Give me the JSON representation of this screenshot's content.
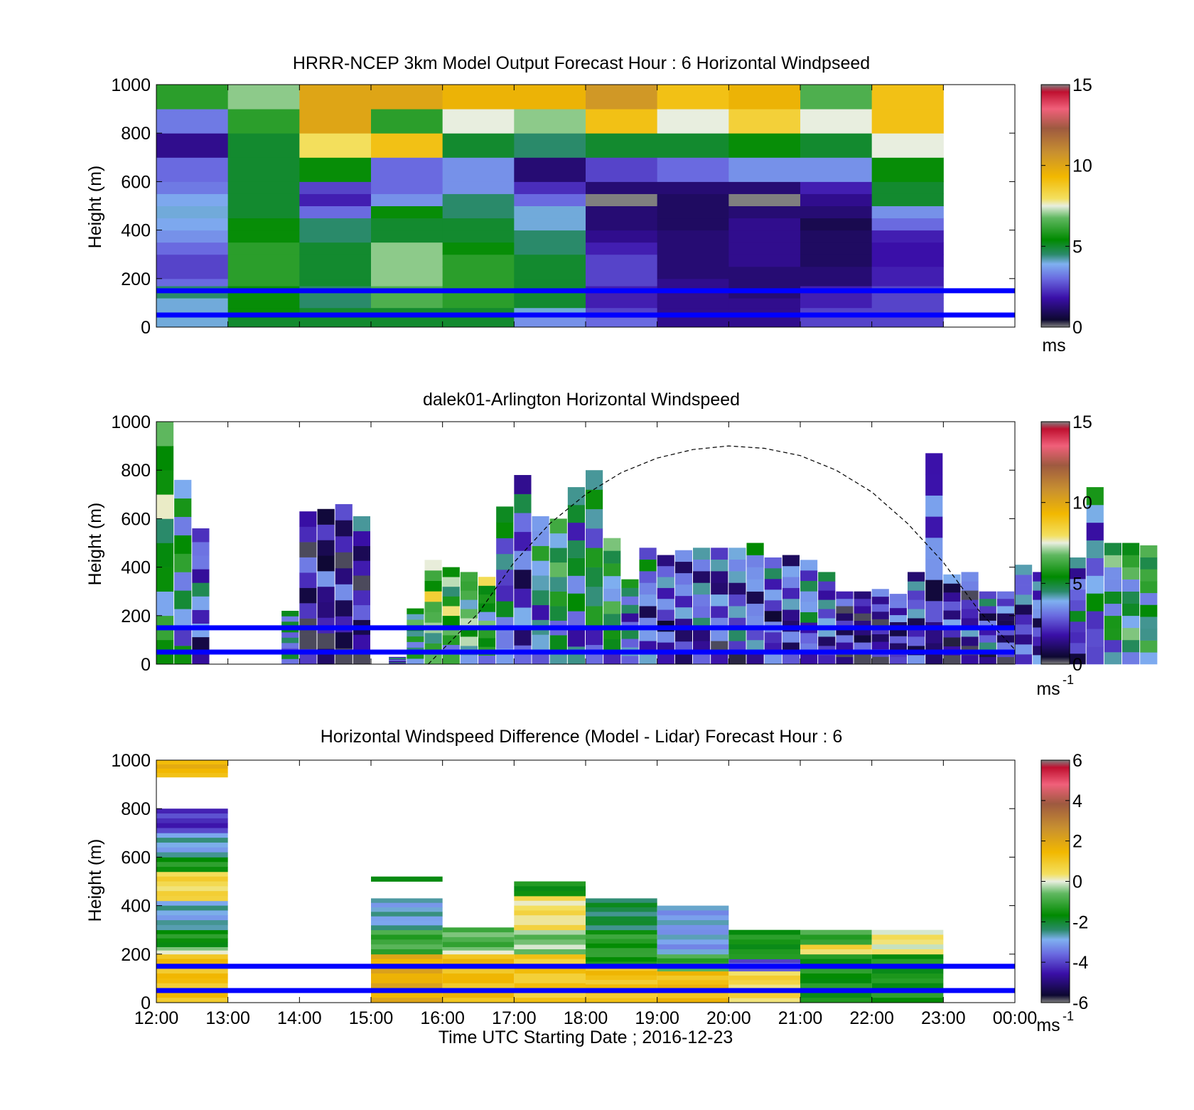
{
  "figure": {
    "xlabel": "Time UTC  Starting Date ; 2016-12-23",
    "x_tick_labels": [
      "12:00",
      "13:00",
      "14:00",
      "15:00",
      "16:00",
      "17:00",
      "18:00",
      "19:00",
      "20:00",
      "21:00",
      "22:00",
      "23:00",
      "00:00"
    ],
    "colors": {
      "boundary_lines": "#0000ff",
      "solar_curve": "#000000"
    }
  },
  "chart_data": [
    {
      "type": "heatmap",
      "title": "HRRR-NCEP 3km Model Output   Forecast Hour : 6 Horizontal Windpseed",
      "ylabel": "Height (m)",
      "xlim": [
        12,
        24
      ],
      "ylim": [
        0,
        1000
      ],
      "y_ticks": [
        0,
        200,
        400,
        600,
        800,
        1000
      ],
      "y_tick_labels": [
        "0",
        "200",
        "400",
        "600",
        "800",
        "1000"
      ],
      "colorbar": {
        "min": 0,
        "max": 15,
        "ticks": [
          "0",
          "5",
          "10",
          "15"
        ],
        "unit": "ms"
      },
      "height_levels": [
        50,
        150
      ],
      "hours": [
        12,
        13,
        14,
        15,
        16,
        17,
        18,
        19,
        20,
        21,
        22
      ],
      "bins_m": [
        0,
        40,
        80,
        120,
        170,
        200,
        250,
        300,
        350,
        400,
        450,
        500,
        550,
        600,
        700,
        800,
        900,
        1000
      ],
      "values": [
        [
          4,
          4,
          4,
          4.5,
          3,
          2.5,
          2.5,
          3,
          3.5,
          3.8,
          4,
          3.8,
          3.2,
          3,
          1.5,
          3.2,
          6
        ],
        [
          5,
          5.5,
          5.5,
          5.5,
          6,
          6,
          6,
          6,
          5.5,
          5.5,
          5,
          5,
          5,
          5,
          5,
          6,
          7
        ],
        [
          5,
          5,
          4.5,
          4.5,
          5,
          5,
          5,
          5,
          4.5,
          4.5,
          3,
          2,
          2.5,
          5.5,
          8,
          10,
          10
        ],
        [
          5,
          5,
          6.5,
          6.5,
          7,
          7,
          7,
          7,
          5,
          5,
          5.5,
          3.5,
          3,
          3,
          9,
          6,
          10
        ],
        [
          5,
          5,
          6,
          6,
          6,
          6,
          6,
          5.5,
          5,
          5,
          4.5,
          4.5,
          3.5,
          3.5,
          5,
          7.5,
          9.5
        ],
        [
          3.5,
          4,
          5,
          5,
          5,
          5,
          5,
          4.5,
          4.5,
          4,
          4,
          3,
          2.2,
          1.2,
          4.5,
          7,
          9.5
        ],
        [
          3,
          2.5,
          2,
          2,
          2.5,
          2.5,
          2.5,
          2,
          1.5,
          1.2,
          1.2,
          0,
          1.2,
          2.5,
          5,
          9,
          10.5
        ],
        [
          1.5,
          1.5,
          1.5,
          1.5,
          1.5,
          1.2,
          1.2,
          1.2,
          1.2,
          1,
          1,
          1,
          1.2,
          3,
          5,
          7.5,
          9
        ],
        [
          1.5,
          1.5,
          1.5,
          1.2,
          1.2,
          1.2,
          1.5,
          1.5,
          1.5,
          1.5,
          1.2,
          0,
          1.2,
          3.5,
          5.5,
          8.5,
          9.5
        ],
        [
          2.5,
          2.5,
          2,
          2,
          1.2,
          1.2,
          1,
          1,
          1,
          0.8,
          1.2,
          1.5,
          2,
          3.5,
          5,
          7.5,
          6.5
        ],
        [
          2.5,
          2.5,
          2.5,
          2.5,
          2,
          2,
          1.8,
          1.8,
          2,
          3,
          3.5,
          5,
          5,
          5.5,
          7.5,
          9,
          9
        ]
      ]
    },
    {
      "type": "heatmap",
      "title": "dalek01-Arlington  Horizontal Windspeed",
      "ylabel": "Height (m)",
      "xlim": [
        12,
        24
      ],
      "ylim": [
        0,
        1000
      ],
      "y_ticks": [
        0,
        200,
        400,
        600,
        800,
        1000
      ],
      "y_tick_labels": [
        "0",
        "200",
        "400",
        "600",
        "800",
        "1000"
      ],
      "colorbar": {
        "min": 0,
        "max": 15,
        "ticks": [
          "0",
          "5",
          "10",
          "15"
        ],
        "unit": "ms",
        "unit_exp": "-1"
      },
      "height_levels": [
        50,
        150
      ],
      "profile_time_step_h": 0.25,
      "profile_start_h": 12,
      "top_heights_m": [
        1000,
        760,
        560,
        0,
        0,
        0,
        0,
        220,
        630,
        640,
        660,
        610,
        0,
        30,
        230,
        430,
        400,
        380,
        360,
        650,
        780,
        610,
        600,
        730,
        800,
        520,
        350,
        480,
        450,
        470,
        480,
        480,
        480,
        500,
        440,
        450,
        430,
        380,
        300,
        300,
        310,
        290,
        380,
        870,
        370,
        380,
        300,
        300,
        410,
        380,
        380,
        440,
        730,
        500,
        500,
        490
      ],
      "mean_speed_ms": [
        5.5,
        4.5,
        3,
        0,
        0,
        0,
        0,
        4,
        1.5,
        1.5,
        1.5,
        1.5,
        0,
        3,
        5,
        6.5,
        6,
        6,
        5.5,
        3.5,
        2.5,
        4,
        5,
        4,
        4.5,
        5,
        3.5,
        3,
        2.5,
        2.5,
        3,
        2.5,
        3,
        3,
        2.5,
        2.5,
        3.5,
        3,
        1.5,
        1,
        1.5,
        2,
        2.5,
        2.5,
        2,
        2,
        2.5,
        2,
        2.5,
        2.5,
        3,
        3,
        3.5,
        4.5,
        5,
        5
      ],
      "solar_elevation_curve": {
        "description": "dashed arc",
        "hours": [
          15.8,
          16.5,
          17,
          17.5,
          18,
          18.5,
          19,
          19.5,
          20,
          20.5,
          21,
          21.5,
          22,
          22.5,
          23,
          23.5,
          24
        ],
        "heights_m": [
          0,
          210,
          420,
          580,
          700,
          790,
          850,
          885,
          900,
          890,
          860,
          800,
          710,
          580,
          420,
          220,
          60
        ]
      }
    },
    {
      "type": "heatmap",
      "title": "Horizontal Windspeed Difference (Model - Lidar) Forecast Hour : 6",
      "ylabel": "Height (m)",
      "xlim": [
        12,
        24
      ],
      "ylim": [
        0,
        1000
      ],
      "y_ticks": [
        0,
        200,
        400,
        600,
        800,
        1000
      ],
      "y_tick_labels": [
        "0",
        "200",
        "400",
        "600",
        "800",
        "1000"
      ],
      "colorbar": {
        "min": -6,
        "max": 6,
        "ticks": [
          "-6",
          "-4",
          "-2",
          "0",
          "2",
          "4",
          "6"
        ],
        "unit": "ms",
        "unit_exp": "-1"
      },
      "height_levels": [
        50,
        150
      ],
      "columns": [
        {
          "hour": 12,
          "segments": [
            [
              0,
              200,
              1.2
            ],
            [
              200,
              230,
              -0.3
            ],
            [
              230,
              300,
              -1.5
            ],
            [
              300,
              420,
              -2.8
            ],
            [
              420,
              540,
              0.6
            ],
            [
              540,
              600,
              -1.5
            ],
            [
              600,
              700,
              -2.8
            ],
            [
              700,
              800,
              -4.2
            ],
            [
              930,
              1000,
              1.5
            ]
          ]
        },
        {
          "hour": 15,
          "segments": [
            [
              0,
              200,
              1.8
            ],
            [
              200,
              300,
              -1
            ],
            [
              300,
              430,
              -2.8
            ],
            [
              500,
              520,
              -2
            ]
          ]
        },
        {
          "hour": 16,
          "segments": [
            [
              0,
              200,
              1.3
            ],
            [
              200,
              230,
              -0.3
            ],
            [
              230,
              310,
              -0.8
            ]
          ]
        },
        {
          "hour": 17,
          "segments": [
            [
              0,
              200,
              1
            ],
            [
              200,
              240,
              -0.3
            ],
            [
              240,
              300,
              -0.5
            ],
            [
              300,
              440,
              0.4
            ],
            [
              440,
              500,
              -1.5
            ]
          ]
        },
        {
          "hour": 18,
          "segments": [
            [
              0,
              150,
              1.2
            ],
            [
              150,
              300,
              -1.3
            ],
            [
              300,
              430,
              -2.2
            ]
          ]
        },
        {
          "hour": 19,
          "segments": [
            [
              0,
              130,
              1.3
            ],
            [
              130,
              200,
              -1
            ],
            [
              200,
              400,
              -3
            ]
          ]
        },
        {
          "hour": 20,
          "segments": [
            [
              0,
              130,
              0.6
            ],
            [
              130,
              180,
              -3.8
            ],
            [
              180,
              300,
              -1.5
            ]
          ]
        },
        {
          "hour": 21,
          "segments": [
            [
              0,
              200,
              -1.5
            ],
            [
              200,
              240,
              0.6
            ],
            [
              240,
              300,
              -1
            ]
          ]
        },
        {
          "hour": 22,
          "segments": [
            [
              0,
              200,
              -1.5
            ],
            [
              200,
              300,
              0.2
            ]
          ]
        }
      ]
    }
  ]
}
